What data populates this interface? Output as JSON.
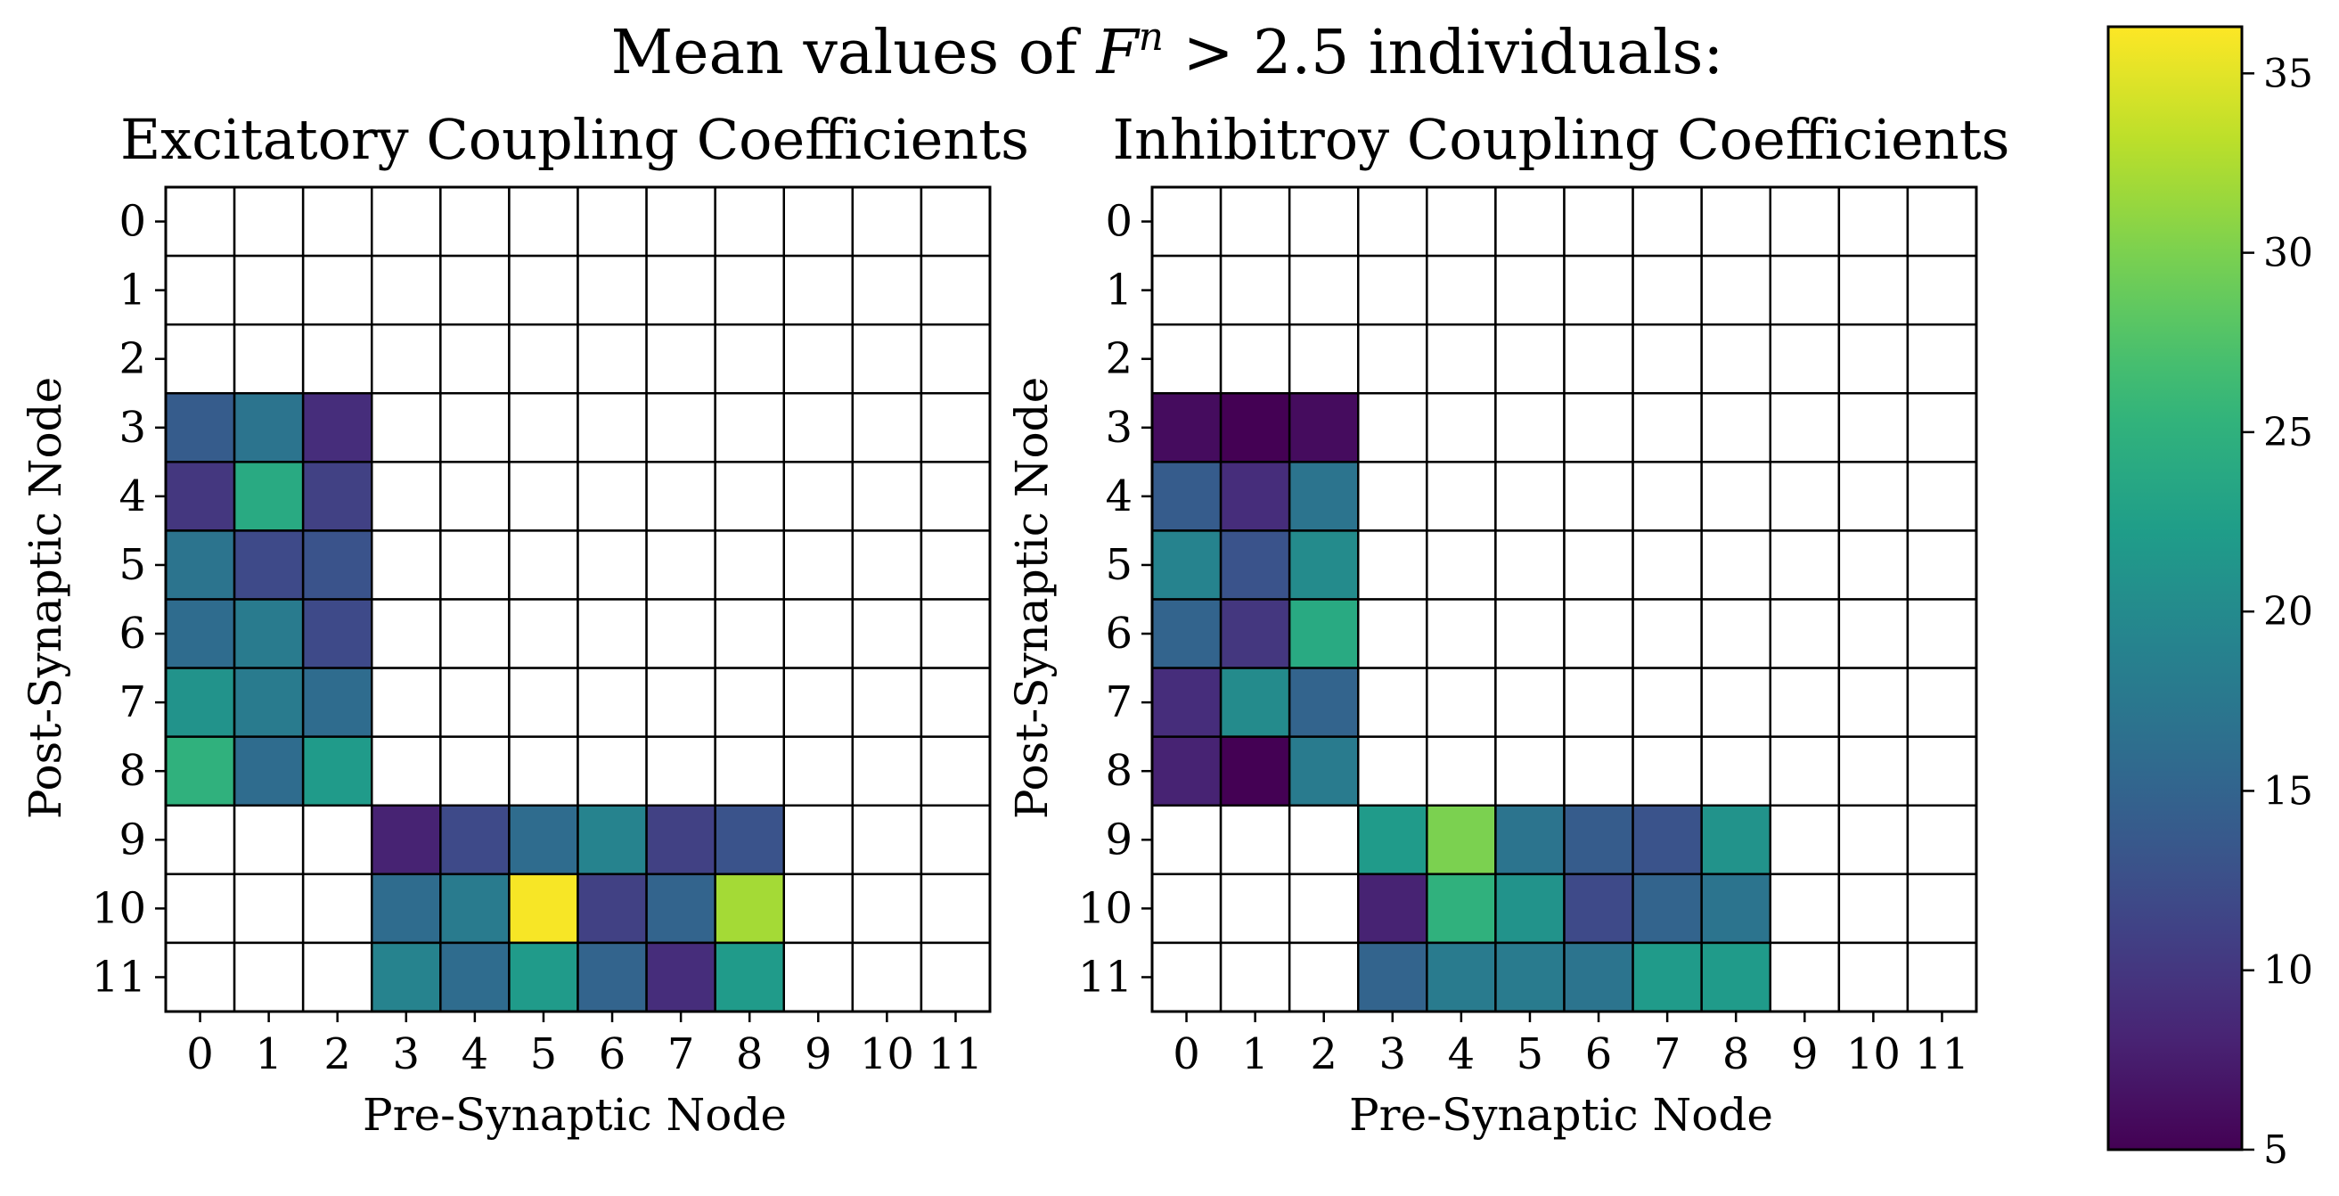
{
  "figure": {
    "suptitle": {
      "before": "Mean values of ",
      "var": "F",
      "sup": "n",
      "after": " > 2.5 individuals:"
    }
  },
  "colorbar": {
    "vmin": 5,
    "vmax": 36.3,
    "ticks": [
      5,
      10,
      15,
      20,
      25,
      30,
      35
    ],
    "colormap": "viridis"
  },
  "chart_data": [
    {
      "type": "heatmap",
      "title": "Excitatory Coupling Coefficients",
      "xlabel": "Pre-Synaptic Node",
      "ylabel": "Post-Synaptic Node",
      "x_ticks": [
        "0",
        "1",
        "2",
        "3",
        "4",
        "5",
        "6",
        "7",
        "8",
        "9",
        "10",
        "11"
      ],
      "y_ticks": [
        "0",
        "1",
        "2",
        "3",
        "4",
        "5",
        "6",
        "7",
        "8",
        "9",
        "10",
        "11"
      ],
      "grid": true,
      "values": [
        [
          null,
          null,
          null,
          null,
          null,
          null,
          null,
          null,
          null,
          null,
          null,
          null
        ],
        [
          null,
          null,
          null,
          null,
          null,
          null,
          null,
          null,
          null,
          null,
          null,
          null
        ],
        [
          null,
          null,
          null,
          null,
          null,
          null,
          null,
          null,
          null,
          null,
          null,
          null
        ],
        [
          14,
          17,
          9,
          null,
          null,
          null,
          null,
          null,
          null,
          null,
          null,
          null
        ],
        [
          10,
          24,
          11,
          null,
          null,
          null,
          null,
          null,
          null,
          null,
          null,
          null
        ],
        [
          17,
          12,
          13,
          null,
          null,
          null,
          null,
          null,
          null,
          null,
          null,
          null
        ],
        [
          16,
          18,
          12,
          null,
          null,
          null,
          null,
          null,
          null,
          null,
          null,
          null
        ],
        [
          21,
          18,
          16,
          null,
          null,
          null,
          null,
          null,
          null,
          null,
          null,
          null
        ],
        [
          25,
          16,
          22,
          null,
          null,
          null,
          null,
          null,
          null,
          null,
          null,
          null
        ],
        [
          null,
          null,
          null,
          8,
          12,
          16,
          19,
          11,
          13,
          null,
          null,
          null
        ],
        [
          null,
          null,
          null,
          16,
          18,
          36,
          11,
          15,
          32,
          null,
          null,
          null
        ],
        [
          null,
          null,
          null,
          19,
          16,
          22,
          15,
          9,
          22,
          null,
          null,
          null
        ]
      ]
    },
    {
      "type": "heatmap",
      "title": "Inhibitroy Coupling Coefficients",
      "xlabel": "Pre-Synaptic Node",
      "ylabel": "Post-Synaptic Node",
      "x_ticks": [
        "0",
        "1",
        "2",
        "3",
        "4",
        "5",
        "6",
        "7",
        "8",
        "9",
        "10",
        "11"
      ],
      "y_ticks": [
        "0",
        "1",
        "2",
        "3",
        "4",
        "5",
        "6",
        "7",
        "8",
        "9",
        "10",
        "11"
      ],
      "grid": true,
      "values": [
        [
          null,
          null,
          null,
          null,
          null,
          null,
          null,
          null,
          null,
          null,
          null,
          null
        ],
        [
          null,
          null,
          null,
          null,
          null,
          null,
          null,
          null,
          null,
          null,
          null,
          null
        ],
        [
          null,
          null,
          null,
          null,
          null,
          null,
          null,
          null,
          null,
          null,
          null,
          null
        ],
        [
          6,
          5,
          6,
          null,
          null,
          null,
          null,
          null,
          null,
          null,
          null,
          null
        ],
        [
          14,
          9,
          17,
          null,
          null,
          null,
          null,
          null,
          null,
          null,
          null,
          null
        ],
        [
          19,
          13,
          20,
          null,
          null,
          null,
          null,
          null,
          null,
          null,
          null,
          null
        ],
        [
          15,
          10,
          24,
          null,
          null,
          null,
          null,
          null,
          null,
          null,
          null,
          null
        ],
        [
          9,
          20,
          15,
          null,
          null,
          null,
          null,
          null,
          null,
          null,
          null,
          null
        ],
        [
          8,
          5,
          18,
          null,
          null,
          null,
          null,
          null,
          null,
          null,
          null,
          null
        ],
        [
          null,
          null,
          null,
          22,
          30,
          17,
          14,
          13,
          21,
          null,
          null,
          null
        ],
        [
          null,
          null,
          null,
          8,
          25,
          21,
          12,
          15,
          17,
          null,
          null,
          null
        ],
        [
          null,
          null,
          null,
          15,
          18,
          18,
          17,
          22,
          22,
          null,
          null,
          null
        ]
      ]
    }
  ]
}
